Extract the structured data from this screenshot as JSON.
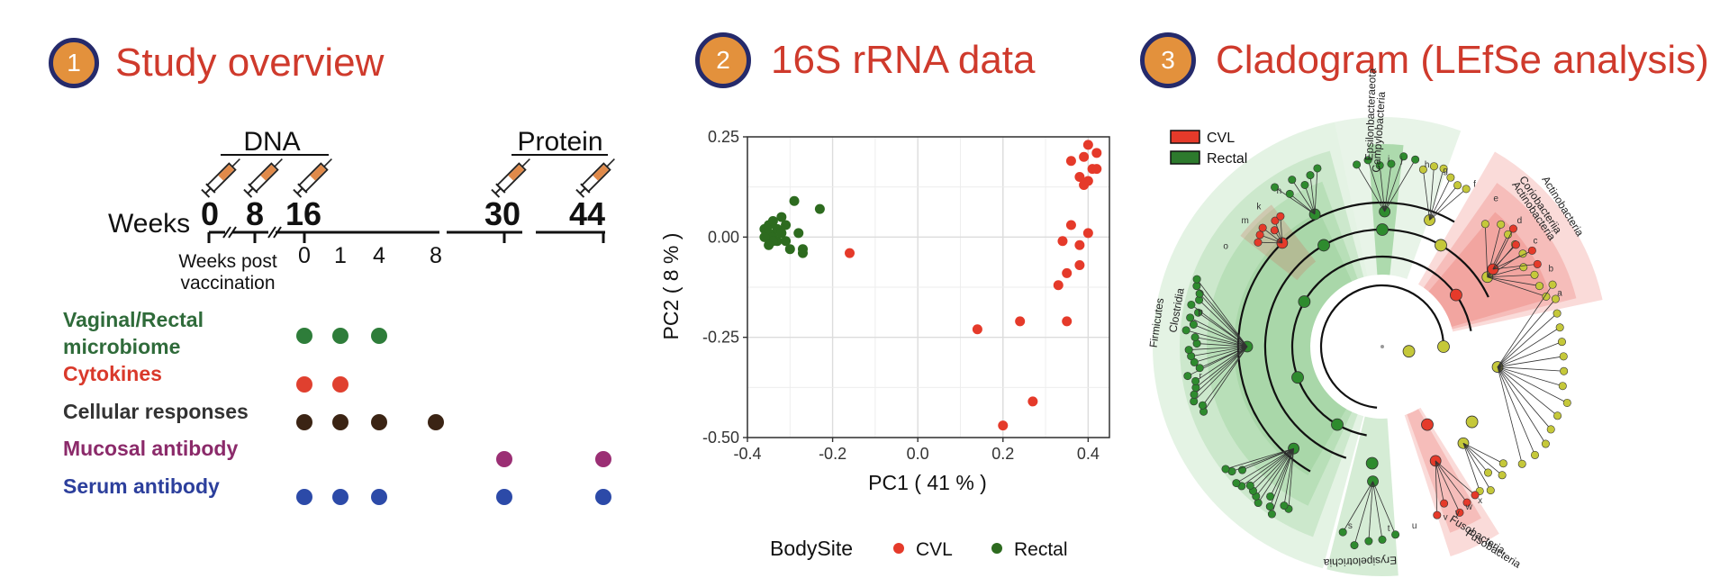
{
  "panel1": {
    "number": "1",
    "title": "Study overview",
    "dna_label": "DNA",
    "protein_label": "Protein",
    "weeks_label": "Weeks",
    "week_numbers": [
      "0",
      "8",
      "16",
      "30",
      "44"
    ],
    "post_label_1": "Weeks post",
    "post_label_2": "vaccination",
    "post_ticks": [
      "0",
      "1",
      "4",
      "8"
    ],
    "rows": [
      {
        "label_lines": [
          "Vaginal/Rectal",
          "microbiome"
        ],
        "color": "#2f6b3a",
        "dot_color": "#2e7d3a",
        "columns": [
          0,
          1,
          2
        ]
      },
      {
        "label_lines": [
          "Cytokines"
        ],
        "color": "#d9392b",
        "dot_color": "#e0402f",
        "columns": [
          0,
          1
        ]
      },
      {
        "label_lines": [
          "Cellular responses"
        ],
        "color": "#333333",
        "dot_color": "#3b2414",
        "columns": [
          0,
          1,
          2,
          3
        ]
      },
      {
        "label_lines": [
          "Mucosal antibody"
        ],
        "color": "#8b2a6a",
        "dot_color": "#9b2f74",
        "columns": [
          4,
          5
        ]
      },
      {
        "label_lines": [
          "Serum antibody"
        ],
        "color": "#2c3f9c",
        "dot_color": "#2c4aa8",
        "columns": [
          0,
          1,
          2,
          4,
          5
        ]
      }
    ]
  },
  "panel2": {
    "number": "2",
    "title": "16S rRNA data",
    "chart_data": {
      "type": "scatter",
      "xlabel": "PC1 ( 41 % )",
      "ylabel": "PC2 ( 8 % )",
      "xlim": [
        -0.4,
        0.45
      ],
      "ylim": [
        -0.5,
        0.25
      ],
      "x_ticks": [
        -0.4,
        -0.2,
        0.0,
        0.2,
        0.4
      ],
      "x_tick_labels": [
        "-0.4",
        "-0.2",
        "0.0",
        "0.2",
        "0.4"
      ],
      "y_ticks": [
        0.25,
        0.0,
        -0.25,
        -0.5
      ],
      "y_tick_labels": [
        "0.25",
        "0.00",
        "-0.25",
        "-0.50"
      ],
      "grid": true,
      "legend_title": "BodySite",
      "legend_position": "bottom",
      "series": [
        {
          "name": "CVL",
          "color": "#e53a2a",
          "points": [
            [
              -0.16,
              -0.04
            ],
            [
              0.14,
              -0.23
            ],
            [
              0.24,
              -0.21
            ],
            [
              0.2,
              -0.47
            ],
            [
              0.27,
              -0.41
            ],
            [
              0.35,
              -0.21
            ],
            [
              0.33,
              -0.12
            ],
            [
              0.35,
              -0.09
            ],
            [
              0.38,
              -0.07
            ],
            [
              0.34,
              -0.01
            ],
            [
              0.36,
              0.03
            ],
            [
              0.38,
              -0.02
            ],
            [
              0.4,
              0.01
            ],
            [
              0.36,
              0.19
            ],
            [
              0.38,
              0.15
            ],
            [
              0.39,
              0.13
            ],
            [
              0.4,
              0.23
            ],
            [
              0.41,
              0.17
            ],
            [
              0.42,
              0.21
            ],
            [
              0.4,
              0.14
            ],
            [
              0.42,
              0.17
            ],
            [
              0.39,
              0.2
            ]
          ]
        },
        {
          "name": "Rectal",
          "color": "#2d6b1f",
          "points": [
            [
              -0.36,
              0.02
            ],
            [
              -0.35,
              0.01
            ],
            [
              -0.35,
              0.03
            ],
            [
              -0.34,
              0.0
            ],
            [
              -0.34,
              0.04
            ],
            [
              -0.33,
              0.02
            ],
            [
              -0.33,
              -0.01
            ],
            [
              -0.32,
              0.01
            ],
            [
              -0.32,
              0.05
            ],
            [
              -0.31,
              -0.01
            ],
            [
              -0.3,
              -0.03
            ],
            [
              -0.29,
              0.09
            ],
            [
              -0.27,
              -0.03
            ],
            [
              -0.27,
              -0.04
            ],
            [
              -0.23,
              0.07
            ],
            [
              -0.34,
              -0.01
            ],
            [
              -0.36,
              0.0
            ],
            [
              -0.31,
              0.03
            ],
            [
              -0.28,
              0.01
            ],
            [
              -0.35,
              -0.02
            ]
          ]
        }
      ]
    }
  },
  "panel3": {
    "number": "3",
    "title": "Cladogram (LEfSe analysis)",
    "legend": [
      {
        "label": "CVL",
        "color": "#e53a2a"
      },
      {
        "label": "Rectal",
        "color": "#2d7a2d"
      }
    ],
    "taxa_labels": [
      "Epsilonbacteraeota",
      "Campylobacteria",
      "Coriobacteriia",
      "Actinobacteria",
      "Actinobacteria",
      "Firmicutes",
      "Clostridia",
      "Fusobacteria",
      "Fusobacteria",
      "Erysipelotrichia"
    ],
    "node_letters": [
      "j",
      "i",
      "h",
      "g",
      "f",
      "e",
      "d",
      "c",
      "b",
      "a",
      "k",
      "m",
      "n",
      "o",
      "p",
      "r",
      "s",
      "t",
      "u",
      "v",
      "w",
      "x",
      "y"
    ]
  }
}
